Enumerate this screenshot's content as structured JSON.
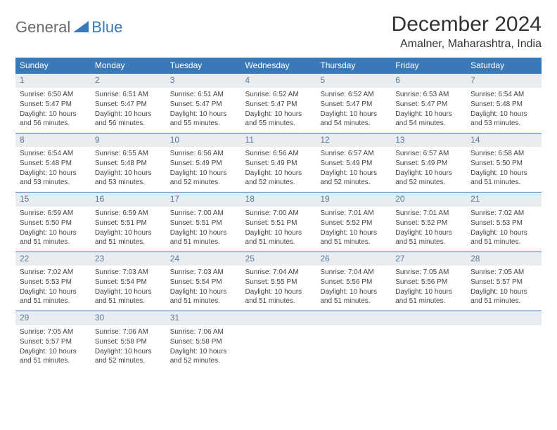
{
  "logo": {
    "text1": "General",
    "text2": "Blue"
  },
  "title": "December 2024",
  "location": "Amalner, Maharashtra, India",
  "colors": {
    "header_bg": "#3a79b7",
    "header_text": "#ffffff",
    "daynum_bg": "#e9edf0",
    "daynum_text": "#5a7a9a",
    "border": "#3a79b7"
  },
  "weekdays": [
    "Sunday",
    "Monday",
    "Tuesday",
    "Wednesday",
    "Thursday",
    "Friday",
    "Saturday"
  ],
  "days": [
    {
      "n": 1,
      "sr": "6:50 AM",
      "ss": "5:47 PM",
      "dl": "10 hours and 56 minutes."
    },
    {
      "n": 2,
      "sr": "6:51 AM",
      "ss": "5:47 PM",
      "dl": "10 hours and 56 minutes."
    },
    {
      "n": 3,
      "sr": "6:51 AM",
      "ss": "5:47 PM",
      "dl": "10 hours and 55 minutes."
    },
    {
      "n": 4,
      "sr": "6:52 AM",
      "ss": "5:47 PM",
      "dl": "10 hours and 55 minutes."
    },
    {
      "n": 5,
      "sr": "6:52 AM",
      "ss": "5:47 PM",
      "dl": "10 hours and 54 minutes."
    },
    {
      "n": 6,
      "sr": "6:53 AM",
      "ss": "5:47 PM",
      "dl": "10 hours and 54 minutes."
    },
    {
      "n": 7,
      "sr": "6:54 AM",
      "ss": "5:48 PM",
      "dl": "10 hours and 53 minutes."
    },
    {
      "n": 8,
      "sr": "6:54 AM",
      "ss": "5:48 PM",
      "dl": "10 hours and 53 minutes."
    },
    {
      "n": 9,
      "sr": "6:55 AM",
      "ss": "5:48 PM",
      "dl": "10 hours and 53 minutes."
    },
    {
      "n": 10,
      "sr": "6:56 AM",
      "ss": "5:49 PM",
      "dl": "10 hours and 52 minutes."
    },
    {
      "n": 11,
      "sr": "6:56 AM",
      "ss": "5:49 PM",
      "dl": "10 hours and 52 minutes."
    },
    {
      "n": 12,
      "sr": "6:57 AM",
      "ss": "5:49 PM",
      "dl": "10 hours and 52 minutes."
    },
    {
      "n": 13,
      "sr": "6:57 AM",
      "ss": "5:49 PM",
      "dl": "10 hours and 52 minutes."
    },
    {
      "n": 14,
      "sr": "6:58 AM",
      "ss": "5:50 PM",
      "dl": "10 hours and 51 minutes."
    },
    {
      "n": 15,
      "sr": "6:59 AM",
      "ss": "5:50 PM",
      "dl": "10 hours and 51 minutes."
    },
    {
      "n": 16,
      "sr": "6:59 AM",
      "ss": "5:51 PM",
      "dl": "10 hours and 51 minutes."
    },
    {
      "n": 17,
      "sr": "7:00 AM",
      "ss": "5:51 PM",
      "dl": "10 hours and 51 minutes."
    },
    {
      "n": 18,
      "sr": "7:00 AM",
      "ss": "5:51 PM",
      "dl": "10 hours and 51 minutes."
    },
    {
      "n": 19,
      "sr": "7:01 AM",
      "ss": "5:52 PM",
      "dl": "10 hours and 51 minutes."
    },
    {
      "n": 20,
      "sr": "7:01 AM",
      "ss": "5:52 PM",
      "dl": "10 hours and 51 minutes."
    },
    {
      "n": 21,
      "sr": "7:02 AM",
      "ss": "5:53 PM",
      "dl": "10 hours and 51 minutes."
    },
    {
      "n": 22,
      "sr": "7:02 AM",
      "ss": "5:53 PM",
      "dl": "10 hours and 51 minutes."
    },
    {
      "n": 23,
      "sr": "7:03 AM",
      "ss": "5:54 PM",
      "dl": "10 hours and 51 minutes."
    },
    {
      "n": 24,
      "sr": "7:03 AM",
      "ss": "5:54 PM",
      "dl": "10 hours and 51 minutes."
    },
    {
      "n": 25,
      "sr": "7:04 AM",
      "ss": "5:55 PM",
      "dl": "10 hours and 51 minutes."
    },
    {
      "n": 26,
      "sr": "7:04 AM",
      "ss": "5:56 PM",
      "dl": "10 hours and 51 minutes."
    },
    {
      "n": 27,
      "sr": "7:05 AM",
      "ss": "5:56 PM",
      "dl": "10 hours and 51 minutes."
    },
    {
      "n": 28,
      "sr": "7:05 AM",
      "ss": "5:57 PM",
      "dl": "10 hours and 51 minutes."
    },
    {
      "n": 29,
      "sr": "7:05 AM",
      "ss": "5:57 PM",
      "dl": "10 hours and 51 minutes."
    },
    {
      "n": 30,
      "sr": "7:06 AM",
      "ss": "5:58 PM",
      "dl": "10 hours and 52 minutes."
    },
    {
      "n": 31,
      "sr": "7:06 AM",
      "ss": "5:58 PM",
      "dl": "10 hours and 52 minutes."
    }
  ],
  "labels": {
    "sunrise": "Sunrise:",
    "sunset": "Sunset:",
    "daylight": "Daylight:"
  }
}
